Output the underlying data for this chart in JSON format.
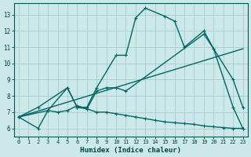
{
  "xlabel": "Humidex (Indice chaleur)",
  "background_color": "#cce8e8",
  "grid_color": "#aacccc",
  "line_color": "#006666",
  "xlim": [
    -0.5,
    23.5
  ],
  "ylim": [
    5.5,
    13.7
  ],
  "xticks": [
    0,
    1,
    2,
    3,
    4,
    5,
    6,
    7,
    8,
    9,
    10,
    11,
    12,
    13,
    14,
    15,
    16,
    17,
    18,
    19,
    20,
    21,
    22,
    23
  ],
  "yticks": [
    6,
    7,
    8,
    9,
    10,
    11,
    12,
    13
  ],
  "series": [
    {
      "x": [
        0,
        2,
        5,
        6,
        7,
        8,
        10,
        11,
        12,
        13,
        15,
        16,
        17,
        19,
        20,
        22,
        23
      ],
      "y": [
        6.7,
        7.3,
        8.5,
        7.3,
        7.3,
        8.5,
        10.5,
        10.5,
        12.8,
        13.4,
        12.9,
        12.6,
        11.0,
        12.0,
        10.9,
        7.3,
        6.0
      ],
      "marker": true
    },
    {
      "x": [
        0,
        23
      ],
      "y": [
        6.7,
        10.9
      ],
      "marker": false
    },
    {
      "x": [
        0,
        3,
        5,
        6,
        7,
        8,
        9,
        10,
        11,
        19,
        20,
        22,
        23
      ],
      "y": [
        6.7,
        7.1,
        8.5,
        7.3,
        7.2,
        8.3,
        8.5,
        8.5,
        8.3,
        11.8,
        10.9,
        9.0,
        7.3
      ],
      "marker": true
    },
    {
      "x": [
        0,
        2,
        3,
        4,
        5,
        6,
        7,
        8,
        9,
        10,
        11,
        12,
        13,
        14,
        15,
        16,
        17,
        18,
        19,
        20,
        21,
        22,
        23
      ],
      "y": [
        6.7,
        6.0,
        7.1,
        7.0,
        7.1,
        7.4,
        7.2,
        7.0,
        7.0,
        6.9,
        6.8,
        6.7,
        6.6,
        6.5,
        6.4,
        6.35,
        6.3,
        6.25,
        6.15,
        6.1,
        6.05,
        6.0,
        6.0
      ],
      "marker": true
    }
  ],
  "markersize": 3,
  "linewidth": 1.0
}
